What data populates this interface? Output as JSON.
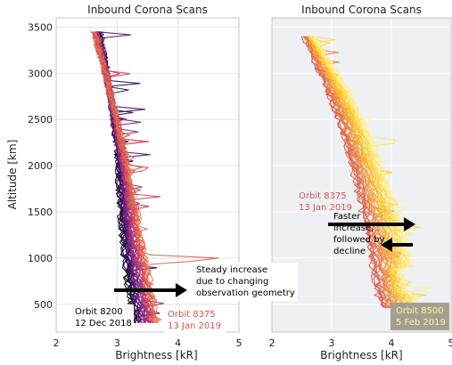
{
  "chart_data": [
    {
      "type": "line",
      "title": "Inbound Corona Scans",
      "xlabel": "Brightness [kR]",
      "ylabel": "Altitude [km]",
      "xlim": [
        2,
        5
      ],
      "ylim": [
        200,
        3600
      ],
      "xticks": [
        "2",
        "3",
        "4",
        "5"
      ],
      "yticks": [
        "500",
        "1000",
        "1500",
        "2000",
        "2500",
        "3000",
        "3500"
      ],
      "grid": true,
      "colormap": [
        "#000000",
        "#2a0a52",
        "#5a1578",
        "#8a2a80",
        "#b83a70",
        "#d9534f",
        "#e8734a"
      ],
      "series": [
        {
          "altitude": [
            3450,
            3300,
            3100,
            2900,
            2700,
            2500,
            2300,
            2100,
            1900,
            1700,
            1500,
            1300,
            1100,
            900,
            700,
            500,
            300
          ],
          "brightness": [
            2.72,
            2.76,
            2.81,
            2.85,
            2.9,
            2.94,
            2.97,
            3.0,
            3.02,
            3.03,
            3.05,
            3.07,
            3.1,
            3.13,
            3.17,
            3.22,
            3.28
          ]
        },
        {
          "altitude": [
            3450,
            3300,
            3100,
            2900,
            2700,
            2500,
            2300,
            2100,
            1900,
            1700,
            1500,
            1300,
            1100,
            900,
            700,
            500,
            300
          ],
          "brightness": [
            2.6,
            2.68,
            2.76,
            2.84,
            2.92,
            3.0,
            3.07,
            3.14,
            3.2,
            3.26,
            3.32,
            3.38,
            3.44,
            3.5,
            3.56,
            3.62,
            3.68
          ]
        }
      ],
      "annotations": [
        {
          "text_lines": [
            "Steady increase",
            "due to changing",
            "observation geometry"
          ],
          "color": "#000000"
        },
        {
          "text_lines": [
            "Orbit 8200",
            "12 Dec 2018"
          ],
          "color": "#000000"
        },
        {
          "text_lines": [
            "Orbit 8375",
            "13 Jan 2019"
          ],
          "color": "#d9534f"
        }
      ]
    },
    {
      "type": "line",
      "title": "Inbound Corona Scans",
      "xlabel": "Brightness [kR]",
      "ylabel": "",
      "xlim": [
        2,
        5
      ],
      "ylim": [
        200,
        3600
      ],
      "xticks": [
        "2",
        "3",
        "4",
        "5"
      ],
      "grid": true,
      "colormap": [
        "#d9534f",
        "#e8734a",
        "#f59b3a",
        "#fbbf24",
        "#fde047",
        "#fff3a0"
      ],
      "series": [
        {
          "altitude": [
            3400,
            3200,
            3000,
            2800,
            2600,
            2400,
            2200,
            2000,
            1800,
            1600,
            1400,
            1200,
            1000,
            800,
            600,
            450
          ],
          "brightness": [
            2.55,
            2.67,
            2.8,
            2.92,
            3.05,
            3.15,
            3.25,
            3.33,
            3.4,
            3.48,
            3.54,
            3.6,
            3.66,
            3.72,
            3.78,
            3.85
          ]
        },
        {
          "altitude": [
            3400,
            3200,
            3000,
            2800,
            2600,
            2400,
            2200,
            2000,
            1800,
            1600,
            1400,
            1200,
            1000,
            800,
            600,
            450
          ],
          "brightness": [
            2.7,
            2.9,
            3.1,
            3.3,
            3.45,
            3.6,
            3.72,
            3.84,
            3.96,
            4.06,
            4.16,
            4.24,
            4.32,
            4.36,
            4.42,
            4.48
          ]
        }
      ],
      "annotations": [
        {
          "text_lines": [
            "Orbit 8375",
            "13 Jan 2019"
          ],
          "color": "#d9534f"
        },
        {
          "text_lines": [
            "Faster",
            "increase,",
            "followed by",
            "decline"
          ],
          "color": "#000000"
        },
        {
          "text_lines": [
            "Orbit 8500",
            "5 Feb 2019"
          ],
          "color": "#fff3a0"
        }
      ]
    }
  ]
}
